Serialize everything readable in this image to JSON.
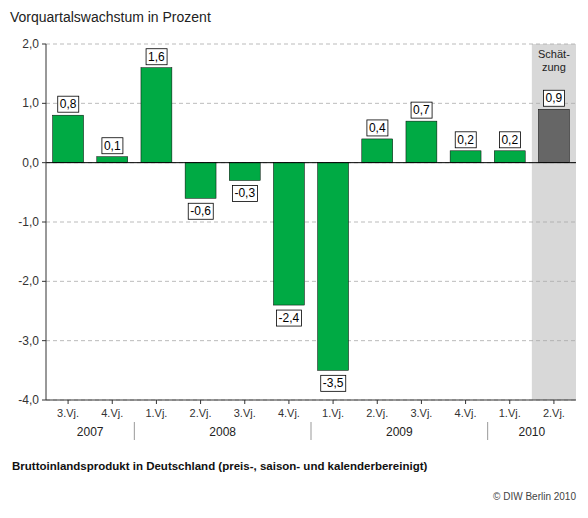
{
  "chart_data": {
    "type": "bar",
    "title": "Vorquartalswachstum in Prozent",
    "categories": [
      "3.Vj.",
      "4.Vj.",
      "1.Vj.",
      "2.Vj.",
      "3.Vj.",
      "4.Vj.",
      "1.Vj.",
      "2.Vj.",
      "3.Vj.",
      "4.Vj.",
      "1.Vj.",
      "2.Vj."
    ],
    "category_groups": [
      "2007",
      "2008",
      "2009",
      "2010"
    ],
    "values": [
      0.8,
      0.1,
      1.6,
      -0.6,
      -0.3,
      -2.4,
      -3.5,
      0.4,
      0.7,
      0.2,
      0.2,
      0.9
    ],
    "value_labels": [
      "0,8",
      "0,1",
      "1,6",
      "-0,6",
      "-0,3",
      "-2,4",
      "-3,5",
      "0,4",
      "0,7",
      "0,2",
      "0,2",
      "0,9"
    ],
    "colors": [
      "#00aa44",
      "#00aa44",
      "#00aa44",
      "#00aa44",
      "#00aa44",
      "#00aa44",
      "#00aa44",
      "#00aa44",
      "#00aa44",
      "#00aa44",
      "#00aa44",
      "#666666"
    ],
    "ylim": [
      -4.0,
      2.0
    ],
    "yticks": [
      {
        "value": -4.0,
        "label": "-4,0"
      },
      {
        "value": -3.0,
        "label": "-3,0"
      },
      {
        "value": -2.0,
        "label": "-2,0"
      },
      {
        "value": -1.0,
        "label": "-1,0"
      },
      {
        "value": 0.0,
        "label": "0,0"
      },
      {
        "value": 1.0,
        "label": "1,0"
      },
      {
        "value": 2.0,
        "label": "2,0"
      }
    ],
    "grid": true,
    "data_labels": true,
    "xlabel": "Bruttoinlandsprodukt in Deutschland (preis-, saison- und kalenderbereinigt)",
    "annotation": "Schät-\nzung",
    "source": "© DIW Berlin 2010"
  }
}
